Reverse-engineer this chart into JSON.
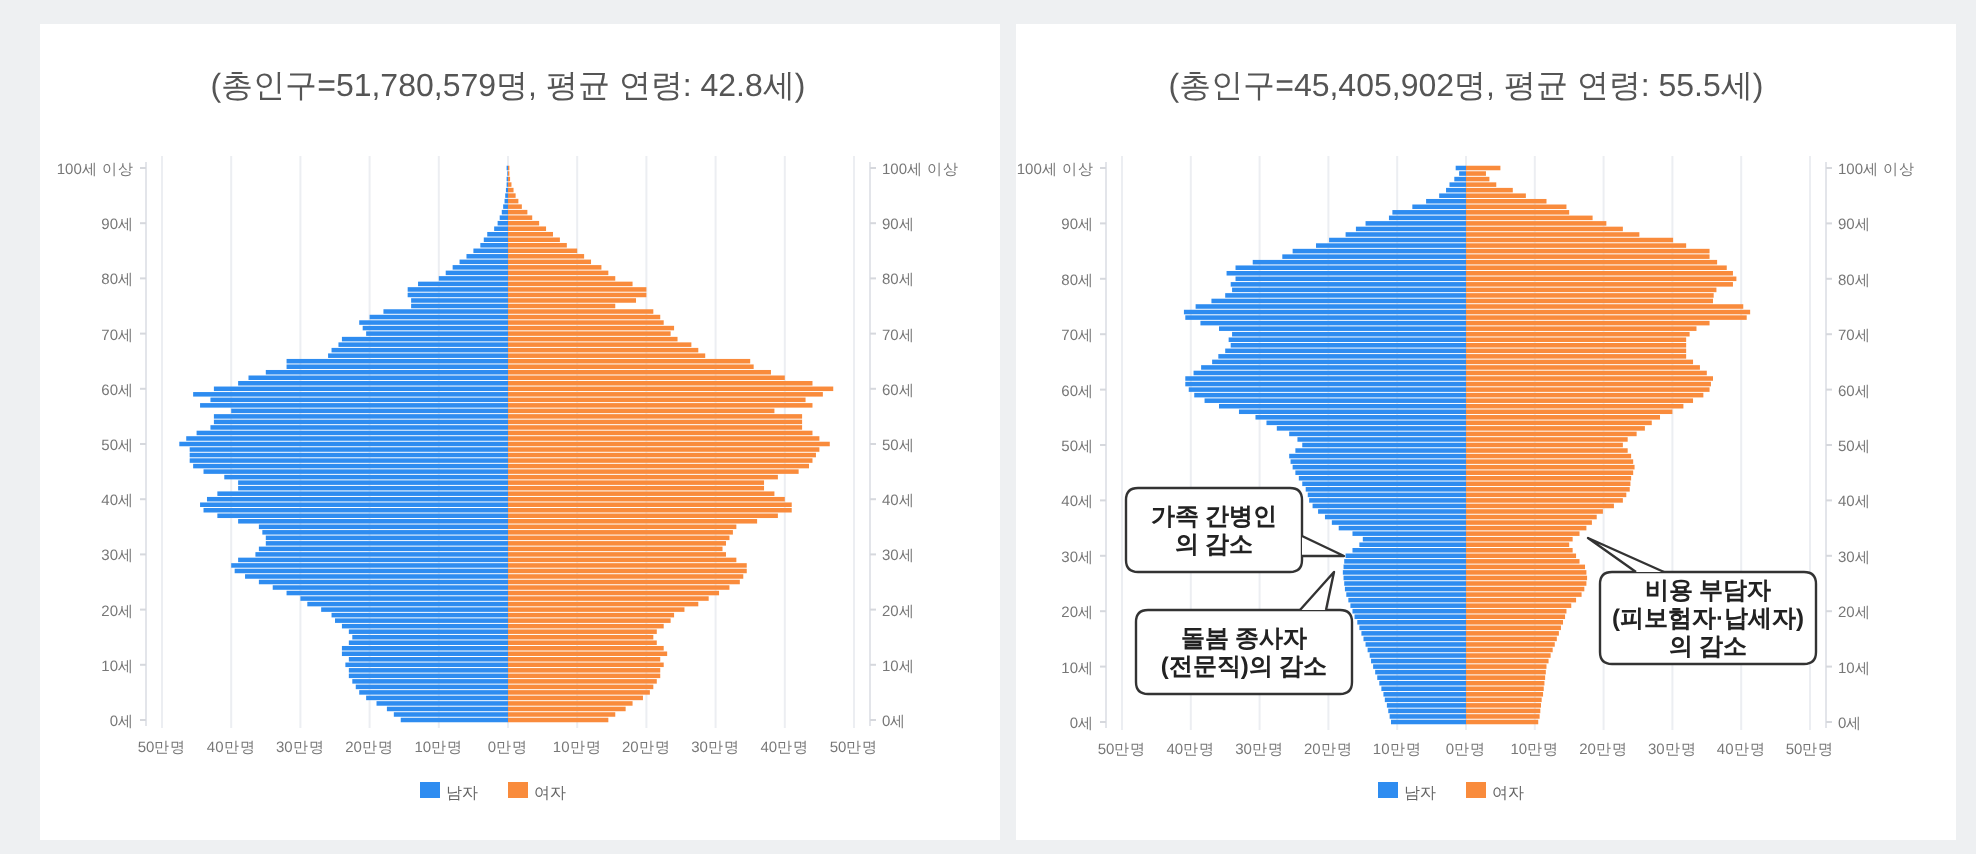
{
  "chart_data": [
    {
      "type": "bar",
      "orientation": "horizontal",
      "stacked": true,
      "title": "(총인구=51,780,579명,  평균 연령: 42.8세)",
      "categories": [
        "100세 이상",
        null,
        null,
        null,
        null,
        null,
        null,
        null,
        null,
        null,
        "90세",
        null,
        null,
        null,
        null,
        null,
        null,
        null,
        null,
        null,
        "80세",
        null,
        null,
        null,
        null,
        null,
        null,
        null,
        null,
        null,
        "70세",
        null,
        null,
        null,
        null,
        null,
        null,
        null,
        null,
        null,
        "60세",
        null,
        null,
        null,
        null,
        null,
        null,
        null,
        null,
        null,
        "50세",
        null,
        null,
        null,
        null,
        null,
        null,
        null,
        null,
        null,
        "40세",
        null,
        null,
        null,
        null,
        null,
        null,
        null,
        null,
        null,
        "30세",
        null,
        null,
        null,
        null,
        null,
        null,
        null,
        null,
        null,
        "20세",
        null,
        null,
        null,
        null,
        null,
        null,
        null,
        null,
        null,
        "10세",
        null,
        null,
        null,
        null,
        null,
        null,
        null,
        null,
        null,
        "0세"
      ],
      "xlim": [
        -50,
        50
      ],
      "xticks": [
        {
          "value": -50,
          "label": "50만명"
        },
        {
          "value": -40,
          "label": "40만명"
        },
        {
          "value": -30,
          "label": "30만명"
        },
        {
          "value": -20,
          "label": "20만명"
        },
        {
          "value": -10,
          "label": "10만명"
        },
        {
          "value": 0,
          "label": "0만명"
        },
        {
          "value": 10,
          "label": "10만명"
        },
        {
          "value": 20,
          "label": "20만명"
        },
        {
          "value": 30,
          "label": "30만명"
        },
        {
          "value": 40,
          "label": "40만명"
        },
        {
          "value": 50,
          "label": "50만명"
        }
      ],
      "grid": "x",
      "legend": "bottom",
      "series": [
        {
          "name": "남자",
          "color": "#2e8cf0",
          "values": [
            -0.2,
            -0.1,
            -0.2,
            -0.2,
            -0.3,
            -0.4,
            -0.5,
            -0.7,
            -0.9,
            -1.2,
            -1.5,
            -2,
            -3,
            -3.5,
            -4,
            -5,
            -6,
            -7,
            -8,
            -9,
            -10,
            -13,
            -14.5,
            -14.5,
            -14,
            -14,
            -18,
            -20,
            -21.5,
            -21,
            -20.5,
            -24,
            -24.5,
            -25.5,
            -26,
            -32,
            -32,
            -35,
            -37.5,
            -39,
            -42.5,
            -45.5,
            -43,
            -44.5,
            -40,
            -42.5,
            -42.5,
            -43,
            -45,
            -46.5,
            -47.5,
            -46,
            -46,
            -46,
            -45.5,
            -44,
            -41,
            -39,
            -39,
            -42,
            -43.5,
            -44.5,
            -44,
            -42,
            -39,
            -36,
            -35.5,
            -35,
            -35,
            -36,
            -36.5,
            -39,
            -40,
            -39.5,
            -38,
            -36,
            -34,
            -32,
            -30,
            -29,
            -27,
            -25.5,
            -25,
            -24,
            -23,
            -22.5,
            -23,
            -24,
            -24,
            -23,
            -23.5,
            -23,
            -23,
            -22.5,
            -22,
            -21.5,
            -20.5,
            -19,
            -17.5,
            -16.5,
            -15.5
          ]
        },
        {
          "name": "여자",
          "color": "#f98b3c",
          "values": [
            0.2,
            0.2,
            0.3,
            0.5,
            0.8,
            1.1,
            1.5,
            2,
            2.8,
            3.5,
            4.5,
            5.5,
            6.5,
            7.5,
            8.5,
            10,
            11,
            12,
            13.5,
            14.5,
            15.5,
            18,
            20,
            20,
            18.5,
            15.5,
            21,
            22,
            22.5,
            24,
            23.5,
            24.5,
            26.5,
            27.5,
            28.5,
            35,
            35.5,
            38,
            40,
            44,
            47,
            45.5,
            43,
            44,
            38.5,
            42.5,
            42.5,
            42.5,
            44,
            45,
            46.5,
            45,
            44.5,
            44,
            43.5,
            42,
            39,
            37,
            37,
            38.5,
            40,
            41,
            41,
            39,
            36,
            33,
            32.5,
            32,
            31.5,
            31,
            31.5,
            33,
            34.5,
            34.5,
            34,
            33.5,
            32,
            30.5,
            29,
            27.5,
            25.5,
            24,
            23.5,
            22.5,
            21.5,
            21,
            21.5,
            22.5,
            23,
            22,
            22.5,
            22,
            22,
            21.5,
            21,
            20.5,
            19.5,
            18,
            17,
            15.5,
            14.5
          ]
        }
      ]
    },
    {
      "type": "bar",
      "orientation": "horizontal",
      "stacked": true,
      "title": "(총인구=45,405,902명,  평균 연령: 55.5세)",
      "categories": [
        "100세 이상",
        null,
        null,
        null,
        null,
        null,
        null,
        null,
        null,
        null,
        "90세",
        null,
        null,
        null,
        null,
        null,
        null,
        null,
        null,
        null,
        "80세",
        null,
        null,
        null,
        null,
        null,
        null,
        null,
        null,
        null,
        "70세",
        null,
        null,
        null,
        null,
        null,
        null,
        null,
        null,
        null,
        "60세",
        null,
        null,
        null,
        null,
        null,
        null,
        null,
        null,
        null,
        "50세",
        null,
        null,
        null,
        null,
        null,
        null,
        null,
        null,
        null,
        "40세",
        null,
        null,
        null,
        null,
        null,
        null,
        null,
        null,
        null,
        "30세",
        null,
        null,
        null,
        null,
        null,
        null,
        null,
        null,
        null,
        "20세",
        null,
        null,
        null,
        null,
        null,
        null,
        null,
        null,
        null,
        "10세",
        null,
        null,
        null,
        null,
        null,
        null,
        null,
        null,
        null,
        "0세"
      ],
      "xlim": [
        -50,
        50
      ],
      "xticks": [
        {
          "value": -50,
          "label": "50만명"
        },
        {
          "value": -40,
          "label": "40만명"
        },
        {
          "value": -30,
          "label": "30만명"
        },
        {
          "value": -20,
          "label": "20만명"
        },
        {
          "value": -10,
          "label": "10만명"
        },
        {
          "value": 0,
          "label": "0만명"
        },
        {
          "value": 10,
          "label": "10만명"
        },
        {
          "value": 20,
          "label": "20만명"
        },
        {
          "value": 30,
          "label": "30만명"
        },
        {
          "value": 40,
          "label": "40만명"
        },
        {
          "value": 50,
          "label": "50만명"
        }
      ],
      "grid": "x",
      "legend": "bottom",
      "annotations": [
        "가족 간병인\n의 감소",
        "돌봄 종사자\n(전문직)의 감소",
        "비용 부담자\n(피보험자·납세자)\n의 감소"
      ],
      "series": [
        {
          "name": "남자",
          "color": "#2e8cf0",
          "values": [
            -1.5,
            -1,
            -1.7,
            -2.4,
            -2.9,
            -3.9,
            -5.8,
            -7.8,
            -10.7,
            -11.2,
            -14.6,
            -16,
            -17.5,
            -19.9,
            -21.8,
            -25.2,
            -26.7,
            -31,
            -33.5,
            -34.8,
            -33.5,
            -34.2,
            -34,
            -35,
            -37,
            -39.3,
            -41,
            -40.8,
            -38.6,
            -35.9,
            -34,
            -34.5,
            -34.2,
            -35,
            -36,
            -36.9,
            -38.5,
            -39.6,
            -40.8,
            -40.8,
            -40.3,
            -39.5,
            -38,
            -35.9,
            -33,
            -30.6,
            -29,
            -27.5,
            -25.7,
            -24.5,
            -23.8,
            -24.8,
            -25.7,
            -25.5,
            -25.2,
            -24.8,
            -24.3,
            -23.8,
            -23.3,
            -23,
            -22.8,
            -22.3,
            -21.5,
            -20.5,
            -19.5,
            -18.5,
            -16.5,
            -15,
            -15.5,
            -16.5,
            -17.5,
            -17.7,
            -17.8,
            -17.9,
            -17.8,
            -17.7,
            -17.6,
            -17.4,
            -17.1,
            -16.8,
            -16.5,
            -16.2,
            -15.8,
            -15.5,
            -15.2,
            -14.9,
            -14.6,
            -14.3,
            -14,
            -13.8,
            -13.5,
            -13.2,
            -12.9,
            -12.6,
            -12.3,
            -12,
            -11.8,
            -11.5,
            -11.3,
            -11.1,
            -10.9
          ]
        },
        {
          "name": "여자",
          "color": "#f98b3c",
          "values": [
            5,
            2.9,
            3.4,
            4.4,
            6.8,
            8.7,
            11.7,
            14.6,
            15,
            18.4,
            20.4,
            22.8,
            25.2,
            30.1,
            32,
            35.4,
            35.4,
            36.5,
            37.9,
            38.8,
            39.3,
            38.8,
            36.4,
            36,
            35.9,
            40.3,
            41.3,
            40.8,
            35.4,
            33.5,
            32.5,
            32,
            32,
            32,
            32,
            33,
            34,
            35,
            35.9,
            35.6,
            35.4,
            34.5,
            33,
            31.6,
            30,
            28.2,
            27,
            26,
            24.8,
            23.5,
            22.8,
            23.5,
            24,
            24.3,
            24.5,
            24.3,
            24,
            23.9,
            23.8,
            23.3,
            22.8,
            21.5,
            19.9,
            19,
            18.3,
            17.5,
            16.5,
            15.5,
            15,
            15.5,
            16,
            16.5,
            17.3,
            17.5,
            17.6,
            17.5,
            17.2,
            16.8,
            16,
            15.3,
            14.6,
            14.4,
            14.1,
            13.8,
            13.5,
            13.2,
            12.9,
            12.6,
            12.3,
            12,
            11.7,
            11.6,
            11.5,
            11.4,
            11.3,
            11.2,
            11,
            10.9,
            10.8,
            10.7,
            10.5
          ]
        }
      ]
    }
  ]
}
